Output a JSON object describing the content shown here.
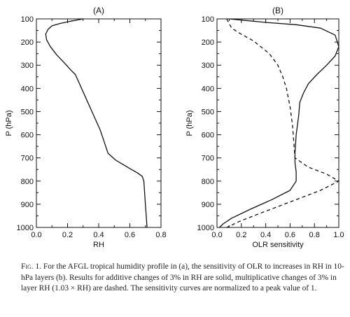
{
  "chart_data": [
    {
      "type": "line",
      "title": "(A)",
      "xlabel": "RH",
      "ylabel": "P (hPa)",
      "xlim": [
        0.0,
        0.8
      ],
      "ylim": [
        1000,
        100
      ],
      "xticks": [
        "0.0",
        "0.2",
        "0.4",
        "0.6",
        "0.8"
      ],
      "yticks": [
        "100",
        "200",
        "300",
        "400",
        "500",
        "600",
        "700",
        "800",
        "900",
        "1000"
      ],
      "series": [
        {
          "style": "solid",
          "x": [
            0.3,
            0.22,
            0.15,
            0.1,
            0.075,
            0.06,
            0.065,
            0.09,
            0.13,
            0.18,
            0.22,
            0.25,
            0.27,
            0.29,
            0.31,
            0.33,
            0.35,
            0.37,
            0.39,
            0.41,
            0.43,
            0.46,
            0.51,
            0.56,
            0.61,
            0.65,
            0.68,
            0.69,
            0.695,
            0.7,
            0.705,
            0.71
          ],
          "y": [
            100,
            110,
            120,
            130,
            145,
            165,
            190,
            220,
            255,
            290,
            320,
            340,
            370,
            400,
            430,
            460,
            490,
            520,
            550,
            580,
            620,
            680,
            710,
            730,
            750,
            765,
            780,
            800,
            850,
            900,
            950,
            1000
          ]
        }
      ]
    },
    {
      "type": "line",
      "title": "(B)",
      "xlabel": "OLR sensitivity",
      "ylabel": "P (hPa)",
      "xlim": [
        0.0,
        1.0
      ],
      "ylim": [
        1000,
        100
      ],
      "xticks": [
        "0.0",
        "0.2",
        "0.4",
        "0.6",
        "0.8",
        "1.0"
      ],
      "yticks": [
        "100",
        "200",
        "300",
        "400",
        "500",
        "600",
        "700",
        "800",
        "900",
        "1000"
      ],
      "series": [
        {
          "style": "solid",
          "x": [
            0.1,
            0.2,
            0.4,
            0.65,
            0.85,
            0.97,
            1.0,
            0.97,
            0.9,
            0.82,
            0.75,
            0.71,
            0.68,
            0.67,
            0.65,
            0.64,
            0.64,
            0.65,
            0.65,
            0.6,
            0.45,
            0.28,
            0.12,
            0.05,
            0.02
          ],
          "y": [
            100,
            105,
            115,
            125,
            140,
            170,
            220,
            260,
            300,
            340,
            380,
            420,
            460,
            520,
            600,
            680,
            720,
            760,
            800,
            840,
            880,
            920,
            960,
            985,
            1000
          ]
        },
        {
          "style": "dashed",
          "x": [
            0.08,
            0.1,
            0.12,
            0.18,
            0.3,
            0.43,
            0.5,
            0.54,
            0.57,
            0.6,
            0.62,
            0.64,
            0.75,
            0.9,
            1.0,
            0.85,
            0.6,
            0.35,
            0.18,
            0.08
          ],
          "y": [
            100,
            120,
            140,
            160,
            195,
            250,
            300,
            350,
            400,
            480,
            560,
            700,
            740,
            770,
            800,
            840,
            890,
            940,
            975,
            1000
          ]
        }
      ]
    }
  ],
  "caption": {
    "lead": "Fig. 1.",
    "text": " For the AFGL tropical humidity profile in (a), the sensitivity of OLR to increases in RH in 10-hPa layers (b). Results for additive changes of 3% in RH are solid, multiplicative changes of 3% in layer RH (1.03 × RH) are dashed. The sensitivity curves are normalized to a peak value of 1."
  }
}
